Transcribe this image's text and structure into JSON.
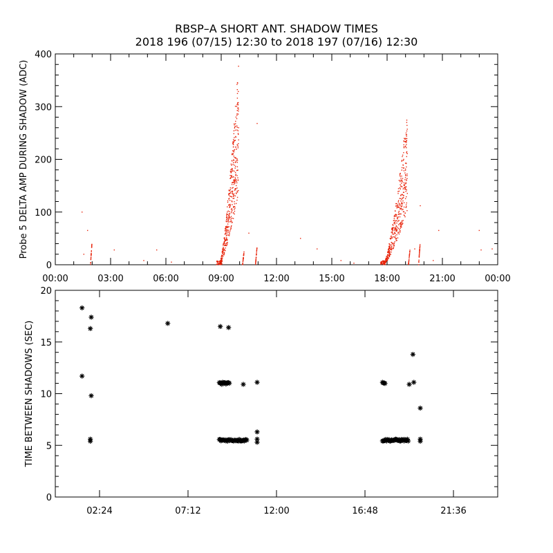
{
  "header": {
    "title_line1": "RBSP–A SHORT ANT. SHADOW TIMES",
    "title_line2": "2018 196 (07/15) 12:30 to 2018 197 (07/16) 12:30"
  },
  "colors": {
    "top_points": "#e8250c",
    "bottom_points": "#000000"
  },
  "chart_data": [
    {
      "type": "scatter",
      "title": "",
      "xlabel": "",
      "ylabel": "Probe 5 DELTA AMP DURING SHADOW (ADC)",
      "xlim_hours": [
        0,
        24
      ],
      "ylim": [
        0,
        400
      ],
      "x_tick_labels": [
        "00:00",
        "03:00",
        "06:00",
        "09:00",
        "12:00",
        "15:00",
        "18:00",
        "21:00",
        "00:00"
      ],
      "y_tick_labels": [
        "0",
        "100",
        "200",
        "300",
        "400"
      ],
      "grid": false,
      "series": [
        {
          "color": "#e8250c",
          "marker": "dot",
          "clusters": [
            {
              "x_start": 8.9,
              "x_end": 9.95,
              "y_min": 0,
              "y_peak": 390
            },
            {
              "x_start": 17.8,
              "x_end": 19.1,
              "y_min": 0,
              "y_peak": 295
            }
          ],
          "short_streaks": [
            {
              "x": 1.95,
              "y_max": 42
            },
            {
              "x": 10.2,
              "y_max": 25
            },
            {
              "x": 10.9,
              "y_max": 32
            },
            {
              "x": 19.2,
              "y_max": 28
            },
            {
              "x": 19.75,
              "y_max": 40
            }
          ],
          "scattered_points": [
            {
              "x": 1.45,
              "y": 100
            },
            {
              "x": 1.75,
              "y": 65
            },
            {
              "x": 1.55,
              "y": 20
            },
            {
              "x": 3.2,
              "y": 28
            },
            {
              "x": 4.8,
              "y": 8
            },
            {
              "x": 5.5,
              "y": 28
            },
            {
              "x": 6.3,
              "y": 5
            },
            {
              "x": 10.5,
              "y": 60
            },
            {
              "x": 10.95,
              "y": 268
            },
            {
              "x": 13.3,
              "y": 50
            },
            {
              "x": 14.2,
              "y": 30
            },
            {
              "x": 15.5,
              "y": 8
            },
            {
              "x": 16.2,
              "y": 3
            },
            {
              "x": 19.5,
              "y": 30
            },
            {
              "x": 19.8,
              "y": 112
            },
            {
              "x": 20.5,
              "y": 8
            },
            {
              "x": 20.8,
              "y": 65
            },
            {
              "x": 23.0,
              "y": 65
            },
            {
              "x": 23.1,
              "y": 28
            },
            {
              "x": 23.7,
              "y": 30
            }
          ]
        }
      ]
    },
    {
      "type": "scatter",
      "title": "",
      "xlabel": "",
      "ylabel": "TIME BETWEEN SHADOWS (SEC)",
      "xlim_hours": [
        0,
        24
      ],
      "ylim": [
        0,
        20
      ],
      "x_tick_labels": [
        "02:24",
        "07:12",
        "12:00",
        "16:48",
        "21:36"
      ],
      "y_tick_labels": [
        "0",
        "5",
        "10",
        "15",
        "20"
      ],
      "grid": false,
      "series": [
        {
          "color": "#000000",
          "marker": "asterisk",
          "bands": [
            {
              "x_start": 8.9,
              "x_end": 10.4,
              "y": 5.5
            },
            {
              "x_start": 17.75,
              "x_end": 19.15,
              "y": 5.5
            },
            {
              "x_start": 8.9,
              "x_end": 9.45,
              "y": 11.0
            },
            {
              "x_start": 17.75,
              "x_end": 17.9,
              "y": 11.0
            }
          ],
          "points": [
            {
              "x": 1.45,
              "y": 18.3
            },
            {
              "x": 1.45,
              "y": 11.7
            },
            {
              "x": 1.95,
              "y": 17.4
            },
            {
              "x": 1.9,
              "y": 16.3
            },
            {
              "x": 1.95,
              "y": 9.8
            },
            {
              "x": 1.9,
              "y": 5.6
            },
            {
              "x": 1.9,
              "y": 5.4
            },
            {
              "x": 6.1,
              "y": 16.8
            },
            {
              "x": 8.95,
              "y": 16.5
            },
            {
              "x": 9.4,
              "y": 16.4
            },
            {
              "x": 10.2,
              "y": 10.9
            },
            {
              "x": 10.95,
              "y": 11.1
            },
            {
              "x": 10.95,
              "y": 6.3
            },
            {
              "x": 10.95,
              "y": 5.6
            },
            {
              "x": 10.95,
              "y": 5.3
            },
            {
              "x": 19.2,
              "y": 10.9
            },
            {
              "x": 19.45,
              "y": 11.1
            },
            {
              "x": 19.4,
              "y": 13.8
            },
            {
              "x": 19.8,
              "y": 8.6
            },
            {
              "x": 19.8,
              "y": 5.6
            },
            {
              "x": 19.8,
              "y": 5.4
            }
          ]
        }
      ]
    }
  ]
}
